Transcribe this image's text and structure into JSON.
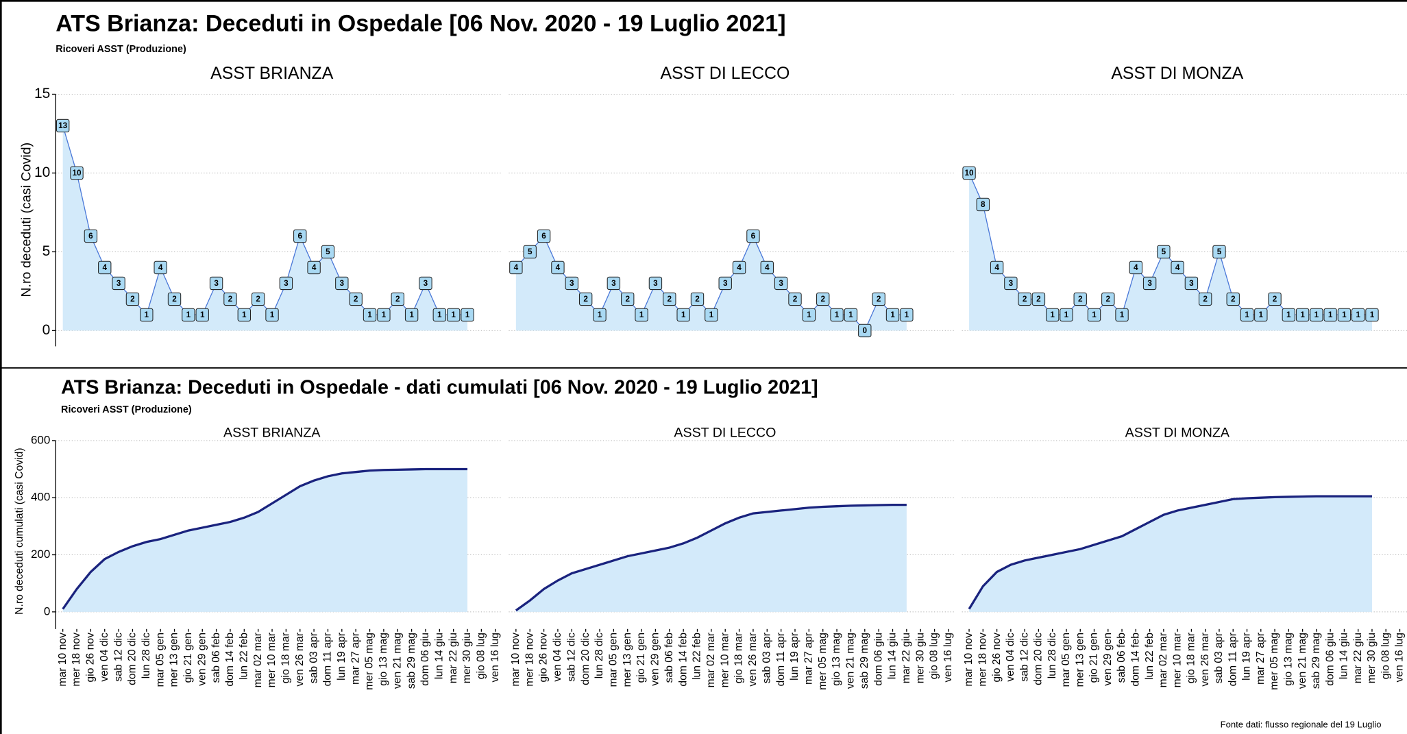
{
  "chart_data": [
    {
      "type": "area",
      "title": "ATS Brianza: Deceduti in Ospedale [06 Nov. 2020 - 19 Luglio 2021]",
      "subtitle": "Ricoveri ASST (Produzione)",
      "y_label": "N.ro deceduti (casi Covid)",
      "ylim": [
        -1,
        15
      ],
      "yticks": [
        0,
        5,
        10,
        15
      ],
      "grid": true,
      "data_labels": true,
      "color": "#4a78d8",
      "fill": "#d3eafa",
      "panels": [
        {
          "name": "ASST BRIANZA",
          "values": [
            13,
            10,
            6,
            4,
            3,
            2,
            1,
            4,
            2,
            1,
            1,
            3,
            2,
            1,
            2,
            1,
            3,
            6,
            4,
            5,
            3,
            2,
            1,
            1,
            2,
            1,
            3,
            1,
            1,
            1,
            null,
            null
          ]
        },
        {
          "name": "ASST DI LECCO",
          "values": [
            4,
            5,
            6,
            4,
            3,
            2,
            1,
            3,
            2,
            1,
            3,
            2,
            1,
            2,
            1,
            3,
            4,
            6,
            4,
            3,
            2,
            1,
            2,
            1,
            1,
            0,
            2,
            1,
            1,
            null,
            null,
            null
          ]
        },
        {
          "name": "ASST DI MONZA",
          "values": [
            10,
            8,
            4,
            3,
            2,
            2,
            1,
            1,
            2,
            1,
            2,
            1,
            4,
            3,
            5,
            4,
            3,
            2,
            5,
            2,
            1,
            1,
            2,
            1,
            1,
            1,
            1,
            1,
            1,
            1,
            null,
            null
          ]
        }
      ]
    },
    {
      "type": "area",
      "title": "ATS Brianza: Deceduti in Ospedale - dati cumulati [06 Nov. 2020 - 19 Luglio 2021]",
      "subtitle": "Ricoveri ASST (Produzione)",
      "y_label": "N.ro deceduti cumulati (casi Covid)",
      "ylim": [
        -60,
        600
      ],
      "yticks": [
        0,
        200,
        400,
        600
      ],
      "grid": true,
      "data_labels": false,
      "color": "#1a237e",
      "fill": "#d3eafa",
      "categories": [
        "mar 10 nov",
        "mer 18 nov",
        "gio 26 nov",
        "ven 04 dic",
        "sab 12 dic",
        "dom 20 dic",
        "lun 28 dic",
        "mar 05 gen",
        "mer 13 gen",
        "gio 21 gen",
        "ven 29 gen",
        "sab 06 feb",
        "dom 14 feb",
        "lun 22 feb",
        "mar 02 mar",
        "mer 10 mar",
        "gio 18 mar",
        "ven 26 mar",
        "sab 03 apr",
        "dom 11 apr",
        "lun 19 apr",
        "mar 27 apr",
        "mer 05 mag",
        "gio 13 mag",
        "ven 21 mag",
        "sab 29 mag",
        "dom 06 giu",
        "lun 14 giu",
        "mar 22 giu",
        "mer 30 giu",
        "gio 08 lug",
        "ven 16 lug"
      ],
      "panels": [
        {
          "name": "ASST BRIANZA",
          "values": [
            10,
            80,
            140,
            185,
            210,
            230,
            245,
            255,
            270,
            285,
            295,
            305,
            315,
            330,
            350,
            380,
            410,
            440,
            460,
            475,
            485,
            490,
            495,
            497,
            498,
            499,
            500,
            500,
            500,
            500,
            null,
            null
          ]
        },
        {
          "name": "ASST DI LECCO",
          "values": [
            5,
            40,
            80,
            110,
            135,
            150,
            165,
            180,
            195,
            205,
            215,
            225,
            240,
            260,
            285,
            310,
            330,
            345,
            350,
            355,
            360,
            365,
            368,
            370,
            372,
            373,
            374,
            375,
            375,
            null,
            null,
            null
          ]
        },
        {
          "name": "ASST DI MONZA",
          "values": [
            10,
            90,
            140,
            165,
            180,
            190,
            200,
            210,
            220,
            235,
            250,
            265,
            290,
            315,
            340,
            355,
            365,
            375,
            385,
            395,
            398,
            400,
            402,
            403,
            404,
            405,
            405,
            405,
            405,
            405,
            null,
            null
          ]
        }
      ]
    }
  ],
  "source": "Fonte dati: flusso regionale del 19 Luglio"
}
